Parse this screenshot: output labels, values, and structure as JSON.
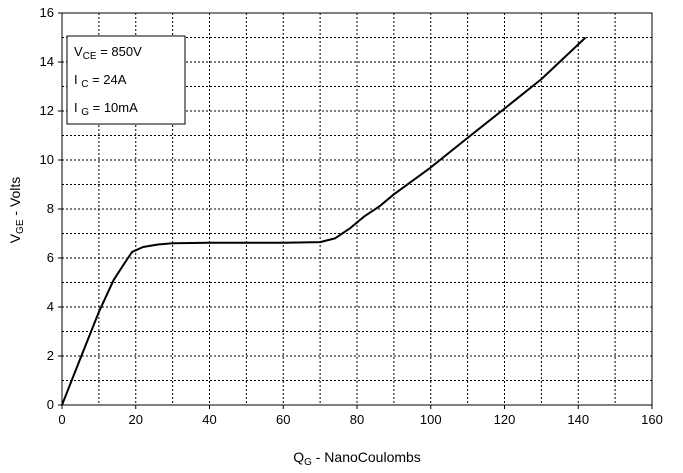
{
  "chart_data": {
    "type": "line",
    "title": "",
    "x_axis": {
      "label_main": "Q",
      "label_sub": "G",
      "label_rest": " - NanoCoulombs",
      "range": [
        0,
        160
      ],
      "ticks": [
        0,
        20,
        40,
        60,
        80,
        100,
        120,
        140,
        160
      ]
    },
    "y_axis": {
      "label_main": "V",
      "label_sub": "GE",
      "label_rest": " - Volts",
      "range": [
        0,
        16
      ],
      "ticks": [
        0,
        2,
        4,
        6,
        8,
        10,
        12,
        14,
        16
      ]
    },
    "grid": true,
    "annotation": [
      {
        "main": "V",
        "sub": "CE",
        "rest": " = 850V"
      },
      {
        "main": "I ",
        "sub": "C",
        "rest": " = 24A"
      },
      {
        "main": "I ",
        "sub": "G",
        "rest": " = 10mA"
      }
    ],
    "series": [
      {
        "color": "#000000",
        "x": [
          0,
          5,
          10,
          14,
          17,
          19,
          22,
          26,
          30,
          40,
          50,
          60,
          70,
          74,
          78,
          82,
          86,
          90,
          100,
          110,
          120,
          130,
          142
        ],
        "y": [
          0,
          1.9,
          3.8,
          5.1,
          5.8,
          6.25,
          6.45,
          6.55,
          6.6,
          6.62,
          6.62,
          6.62,
          6.65,
          6.8,
          7.2,
          7.7,
          8.1,
          8.6,
          9.7,
          10.9,
          12.1,
          13.3,
          15.0
        ]
      }
    ]
  }
}
